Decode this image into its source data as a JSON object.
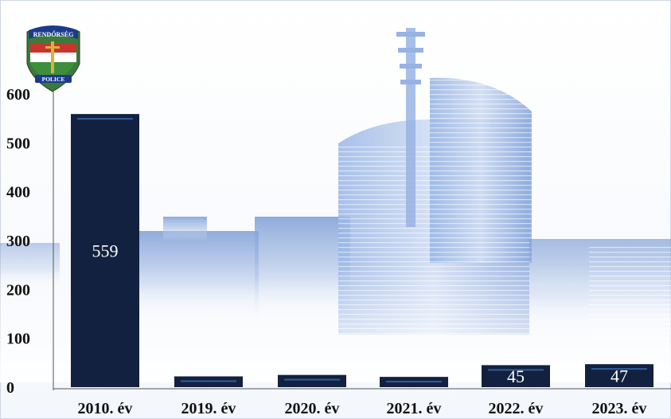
{
  "chart_data": {
    "type": "bar",
    "categories": [
      "2010. év",
      "2019. év",
      "2020. év",
      "2021. év",
      "2022. év",
      "2023. év"
    ],
    "values": [
      559,
      22,
      25,
      21,
      45,
      47
    ],
    "data_labels": [
      "559",
      "",
      "",
      "",
      "45",
      "47"
    ],
    "ylim": [
      0,
      600
    ],
    "yticks": [
      0,
      100,
      200,
      300,
      400,
      500,
      600
    ],
    "grid": false,
    "title": "",
    "xlabel": "",
    "ylabel": "",
    "colors": {
      "bar": "#12213f",
      "bar_highlight": "#2f5e9c",
      "data_label": "#ffffff",
      "axis_text": "#111111",
      "background_building": "#7fa0d6"
    }
  },
  "logo": {
    "top_text": "RENDŐRSÉG",
    "bottom_text": "POLICE",
    "icon": "police-shield-emblem"
  }
}
